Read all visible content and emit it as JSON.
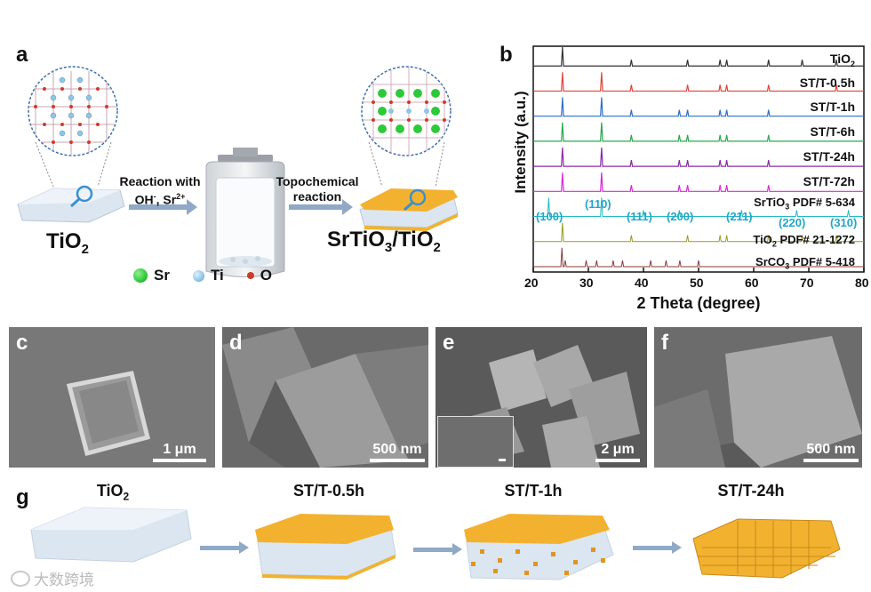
{
  "panel_a": {
    "letter": "a",
    "tio2_label": "TiO",
    "tio2_sub": "2",
    "arrow1_line1": "Reaction with",
    "arrow1_oh": "OH",
    "arrow1_oh_sup": "-",
    "arrow1_sr": ", Sr",
    "arrow1_sr_sup": "2+",
    "arrow2_line1": "Topochemical",
    "arrow2_line2": "reaction",
    "product_a": "SrTiO",
    "product_sub1": "3",
    "product_b": "/TiO",
    "product_sub2": "2",
    "legend": [
      {
        "symbol": "Sr",
        "color": "#2ec93a"
      },
      {
        "symbol": "Ti",
        "color": "#8fc6e6"
      },
      {
        "symbol": "O",
        "color": "#d03a2a"
      }
    ]
  },
  "chart_data": {
    "type": "line",
    "panel_letter": "b",
    "xlabel": "2 Theta (degree)",
    "ylabel": "Intensity (a.u.)",
    "xlim": [
      20,
      80
    ],
    "xticks": [
      "20",
      "30",
      "40",
      "50",
      "60",
      "70",
      "80"
    ],
    "series": [
      {
        "name": "TiO2",
        "label_main": "TiO",
        "label_sub": "2",
        "label_rest": "",
        "color": "#333333",
        "peaks": [
          25.3,
          37.8,
          48.0,
          53.9,
          55.1,
          62.7,
          68.8,
          75.0
        ]
      },
      {
        "name": "ST/T-0.5h",
        "label_main": "ST/T-0.5h",
        "label_sub": "",
        "label_rest": "",
        "color": "#e0453a",
        "peaks": [
          25.3,
          32.4,
          37.8,
          48.0,
          53.9,
          55.1,
          62.7,
          75.0
        ]
      },
      {
        "name": "ST/T-1h",
        "label_main": "ST/T-1h",
        "label_sub": "",
        "label_rest": "",
        "color": "#2a6fc9",
        "peaks": [
          25.3,
          32.4,
          37.8,
          46.5,
          48.0,
          53.9,
          55.1,
          62.7
        ]
      },
      {
        "name": "ST/T-6h",
        "label_main": "ST/T-6h",
        "label_sub": "",
        "label_rest": "",
        "color": "#2aa84a",
        "peaks": [
          25.3,
          32.4,
          37.8,
          46.5,
          48.0,
          53.9,
          55.1,
          62.7
        ]
      },
      {
        "name": "ST/T-24h",
        "label_main": "ST/T-24h",
        "label_sub": "",
        "label_rest": "",
        "color": "#8a2aa8",
        "peaks": [
          25.3,
          32.4,
          37.8,
          46.5,
          48.0,
          53.9,
          55.1,
          62.7
        ]
      },
      {
        "name": "ST/T-72h",
        "label_main": "ST/T-72h",
        "label_sub": "",
        "label_rest": "",
        "color": "#d62ad6",
        "peaks": [
          25.3,
          32.4,
          37.8,
          46.5,
          48.0,
          53.9,
          55.1,
          62.7
        ]
      },
      {
        "name": "SrTiO3 PDF# 5-634",
        "label_main": "SrTiO",
        "label_sub": "3",
        "label_rest": " PDF# 5-634",
        "color": "#22b8c8",
        "peaks": [
          22.8,
          32.4,
          40.0,
          46.5,
          57.8,
          67.8,
          77.2
        ]
      },
      {
        "name": "TiO2 PDF# 21-1272",
        "label_main": "TiO",
        "label_sub": "2",
        "label_rest": " PDF# 21-1272",
        "color": "#9a9a1a",
        "peaks": [
          25.3,
          37.8,
          48.0,
          53.9,
          55.1,
          62.7,
          68.8,
          75.0
        ]
      },
      {
        "name": "SrCO3 PDF# 5-418",
        "label_main": "SrCO",
        "label_sub": "3",
        "label_rest": " PDF# 5-418",
        "color": "#8a3a3a",
        "peaks": [
          25.2,
          25.8,
          29.6,
          31.5,
          34.5,
          36.2,
          41.3,
          44.1,
          46.6,
          50.0
        ]
      }
    ],
    "srtio3_indices": [
      {
        "label": "(100)",
        "x": 22.8
      },
      {
        "label": "(110)",
        "x": 32.4
      },
      {
        "label": "(111)",
        "x": 40.0
      },
      {
        "label": "(200)",
        "x": 46.5
      },
      {
        "label": "(211)",
        "x": 57.8
      },
      {
        "label": "(220)",
        "x": 67.8
      },
      {
        "label": "(310)",
        "x": 77.2
      }
    ]
  },
  "sem_panels": [
    {
      "letter": "c",
      "scale": "1 μm"
    },
    {
      "letter": "d",
      "scale": "500 nm"
    },
    {
      "letter": "e",
      "scale": "2 μm"
    },
    {
      "letter": "f",
      "scale": "500 nm"
    }
  ],
  "panel_g": {
    "letter": "g",
    "stages": [
      {
        "main": "TiO",
        "sub": "2"
      },
      {
        "main": "ST/T-0.5h",
        "sub": ""
      },
      {
        "main": "ST/T-1h",
        "sub": ""
      },
      {
        "main": "ST/T-24h",
        "sub": ""
      }
    ]
  },
  "watermark": "大数跨境",
  "colors": {
    "arrow": "#8fa9c6",
    "sto_gold": "#f2b230",
    "crystal": "#dbe6f1"
  }
}
